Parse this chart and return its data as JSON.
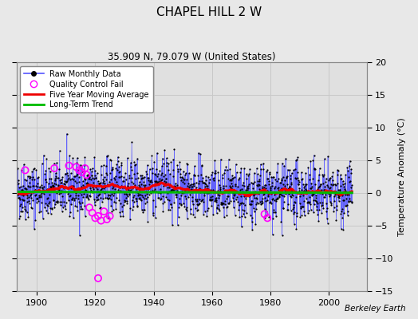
{
  "title": "CHAPEL HILL 2 W",
  "subtitle": "35.909 N, 79.079 W (United States)",
  "ylabel": "Temperature Anomaly (°C)",
  "credit": "Berkeley Earth",
  "xlim": [
    1893,
    2013
  ],
  "ylim": [
    -15,
    20
  ],
  "yticks": [
    -15,
    -10,
    -5,
    0,
    5,
    10,
    15,
    20
  ],
  "xticks": [
    1900,
    1920,
    1940,
    1960,
    1980,
    2000
  ],
  "bg_color": "#e8e8e8",
  "plot_bg_color": "#e0e0e0",
  "grid_color": "#c8c8c8",
  "raw_line_color": "#5555ff",
  "raw_dot_color": "#000000",
  "moving_avg_color": "#ee0000",
  "trend_color": "#00bb00",
  "qc_fail_color": "#ff00ff",
  "seed": 42,
  "n_points": 1392,
  "start_year": 1893,
  "end_year": 2008
}
